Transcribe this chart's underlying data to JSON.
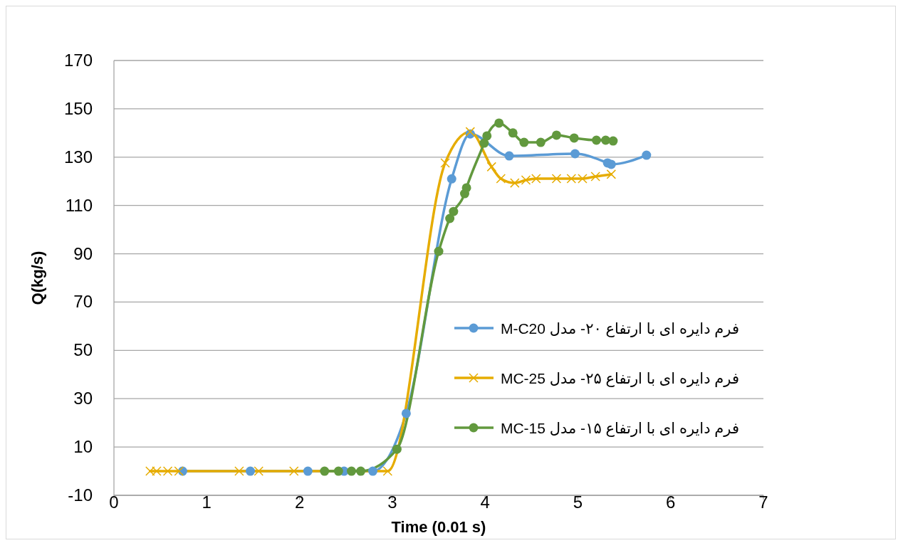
{
  "chart_data": {
    "type": "line",
    "xlabel": "Time (0.01 s)",
    "ylabel": "Q(kg/s)",
    "xlim": [
      0,
      7
    ],
    "xticks": [
      0,
      1,
      2,
      3,
      4,
      5,
      6,
      7
    ],
    "ylim": [
      -10,
      170
    ],
    "yticks": [
      -10,
      10,
      30,
      50,
      70,
      90,
      110,
      130,
      150,
      170
    ],
    "grid": "y",
    "legend": "bottom right",
    "line_style": "solid",
    "series": [
      {
        "name": "فرم دایره ای با ارتفاع ۲۰- مدل M-C20",
        "color": "#5b9bd5",
        "marker": "circle",
        "x": [
          0.74,
          1.47,
          2.09,
          2.48,
          2.79,
          3.15,
          3.64,
          3.84,
          4.26,
          4.97,
          5.32,
          5.36,
          5.74
        ],
        "values": [
          0,
          0,
          0,
          0,
          0,
          23.9,
          121,
          139.6,
          130.5,
          131.4,
          127.6,
          127,
          130.8
        ]
      },
      {
        "name": "فرم دایره ای با ارتفاع ۲۵- مدل MC-25",
        "color": "#e6ac00",
        "marker": "cross",
        "x": [
          0.39,
          0.46,
          0.58,
          0.7,
          1.35,
          1.56,
          1.94,
          2.95,
          3.57,
          3.84,
          4.07,
          4.17,
          4.32,
          4.44,
          4.55,
          4.77,
          4.93,
          5.05,
          5.19,
          5.36
        ],
        "values": [
          0,
          0,
          0,
          0,
          0,
          0,
          0,
          0,
          127.6,
          140.5,
          126,
          121.1,
          119.3,
          120.5,
          121.1,
          121.1,
          121.1,
          121.1,
          122,
          122.9
        ]
      },
      {
        "name": "فرم دایره ای با ارتفاع ۱۵- مدل  MC-15",
        "color": "#62993e",
        "marker": "circle",
        "x": [
          2.27,
          2.42,
          2.56,
          2.66,
          3.05,
          3.5,
          3.62,
          3.66,
          3.78,
          3.8,
          3.99,
          4.02,
          4.15,
          4.3,
          4.42,
          4.6,
          4.77,
          4.96,
          5.2,
          5.3,
          5.38
        ],
        "values": [
          0,
          0,
          0,
          0,
          9.1,
          91,
          104.6,
          107.5,
          114.9,
          117.3,
          135.8,
          138.8,
          144.1,
          140,
          136.1,
          136.1,
          139.1,
          137.9,
          137,
          137,
          136.7
        ]
      }
    ]
  }
}
